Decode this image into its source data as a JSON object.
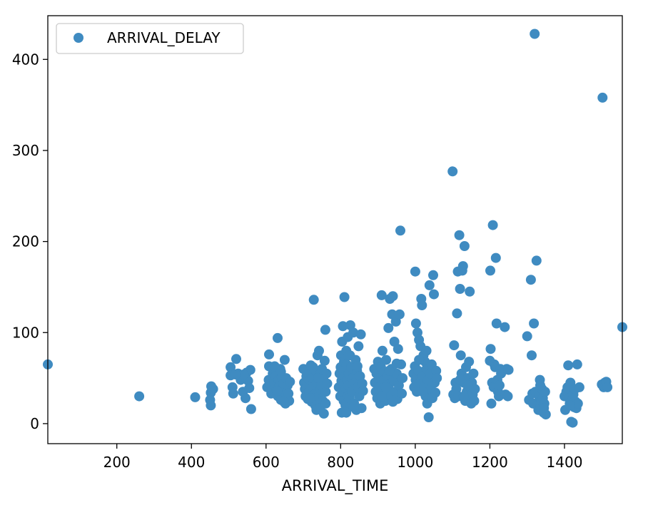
{
  "chart_data": {
    "type": "scatter",
    "title": "",
    "xlabel": "ARRIVAL_TIME",
    "ylabel": "",
    "xlim": [
      15,
      1555
    ],
    "ylim": [
      -22,
      448
    ],
    "x_ticks": [
      200,
      400,
      600,
      800,
      1000,
      1200,
      1400
    ],
    "y_ticks": [
      0,
      100,
      200,
      300,
      400
    ],
    "grid": false,
    "legend": {
      "placement": "top-left",
      "entries": [
        "ARRIVAL_DELAY"
      ]
    },
    "color": "#3f8bc1",
    "series": [
      {
        "name": "ARRIVAL_DELAY",
        "points": [
          [
            15,
            65
          ],
          [
            260,
            30
          ],
          [
            410,
            29
          ],
          [
            453,
            41
          ],
          [
            452,
            34
          ],
          [
            450,
            26
          ],
          [
            452,
            20
          ],
          [
            458,
            38
          ],
          [
            505,
            62
          ],
          [
            505,
            53
          ],
          [
            510,
            40
          ],
          [
            512,
            33
          ],
          [
            520,
            71
          ],
          [
            525,
            55
          ],
          [
            532,
            48
          ],
          [
            538,
            35
          ],
          [
            545,
            28
          ],
          [
            548,
            56
          ],
          [
            552,
            47
          ],
          [
            555,
            39
          ],
          [
            558,
            59
          ],
          [
            560,
            16
          ],
          [
            540,
            54
          ],
          [
            518,
            54
          ],
          [
            608,
            76
          ],
          [
            608,
            63
          ],
          [
            603,
            40
          ],
          [
            607,
            48
          ],
          [
            612,
            43
          ],
          [
            614,
            33
          ],
          [
            618,
            55
          ],
          [
            622,
            45
          ],
          [
            625,
            52
          ],
          [
            628,
            37
          ],
          [
            631,
            94
          ],
          [
            632,
            30
          ],
          [
            634,
            48
          ],
          [
            636,
            41
          ],
          [
            638,
            60
          ],
          [
            640,
            26
          ],
          [
            642,
            51
          ],
          [
            644,
            38
          ],
          [
            646,
            44
          ],
          [
            648,
            35
          ],
          [
            650,
            70
          ],
          [
            652,
            22
          ],
          [
            654,
            50
          ],
          [
            656,
            28
          ],
          [
            658,
            42
          ],
          [
            660,
            33
          ],
          [
            662,
            25
          ],
          [
            664,
            46
          ],
          [
            623,
            63
          ],
          [
            640,
            57
          ],
          [
            630,
            36
          ],
          [
            648,
            24
          ],
          [
            700,
            60
          ],
          [
            702,
            45
          ],
          [
            704,
            38
          ],
          [
            706,
            30
          ],
          [
            708,
            52
          ],
          [
            710,
            42
          ],
          [
            712,
            27
          ],
          [
            714,
            55
          ],
          [
            716,
            35
          ],
          [
            718,
            48
          ],
          [
            720,
            64
          ],
          [
            722,
            24
          ],
          [
            724,
            50
          ],
          [
            726,
            40
          ],
          [
            728,
            136
          ],
          [
            730,
            32
          ],
          [
            732,
            20
          ],
          [
            734,
            58
          ],
          [
            736,
            45
          ],
          [
            738,
            75
          ],
          [
            740,
            30
          ],
          [
            742,
            80
          ],
          [
            744,
            52
          ],
          [
            746,
            37
          ],
          [
            748,
            42
          ],
          [
            750,
            60
          ],
          [
            752,
            25
          ],
          [
            754,
            48
          ],
          [
            755,
            11
          ],
          [
            757,
            69
          ],
          [
            759,
            103
          ],
          [
            760,
            35
          ],
          [
            762,
            55
          ],
          [
            764,
            44
          ],
          [
            735,
            15
          ],
          [
            745,
            17
          ],
          [
            718,
            28
          ],
          [
            726,
            62
          ],
          [
            740,
            50
          ],
          [
            760,
            22
          ],
          [
            795,
            40
          ],
          [
            797,
            55
          ],
          [
            799,
            30
          ],
          [
            800,
            62
          ],
          [
            801,
            75
          ],
          [
            802,
            47
          ],
          [
            803,
            12
          ],
          [
            804,
            90
          ],
          [
            805,
            35
          ],
          [
            806,
            107
          ],
          [
            807,
            58
          ],
          [
            808,
            25
          ],
          [
            809,
            68
          ],
          [
            810,
            139
          ],
          [
            811,
            45
          ],
          [
            812,
            52
          ],
          [
            813,
            20
          ],
          [
            814,
            38
          ],
          [
            815,
            80
          ],
          [
            816,
            65
          ],
          [
            817,
            48
          ],
          [
            818,
            30
          ],
          [
            819,
            95
          ],
          [
            820,
            42
          ],
          [
            822,
            55
          ],
          [
            824,
            28
          ],
          [
            826,
            108
          ],
          [
            828,
            62
          ],
          [
            830,
            35
          ],
          [
            832,
            50
          ],
          [
            834,
            100
          ],
          [
            836,
            22
          ],
          [
            838,
            45
          ],
          [
            840,
            70
          ],
          [
            842,
            15
          ],
          [
            844,
            58
          ],
          [
            846,
            40
          ],
          [
            848,
            85
          ],
          [
            850,
            30
          ],
          [
            852,
            52
          ],
          [
            854,
            98
          ],
          [
            856,
            17
          ],
          [
            858,
            44
          ],
          [
            860,
            36
          ],
          [
            825,
            75
          ],
          [
            835,
            18
          ],
          [
            845,
            63
          ],
          [
            815,
            12
          ],
          [
            890,
            60
          ],
          [
            892,
            45
          ],
          [
            894,
            35
          ],
          [
            896,
            55
          ],
          [
            898,
            28
          ],
          [
            900,
            68
          ],
          [
            902,
            50
          ],
          [
            904,
            40
          ],
          [
            906,
            22
          ],
          [
            908,
            62
          ],
          [
            910,
            141
          ],
          [
            912,
            80
          ],
          [
            914,
            32
          ],
          [
            916,
            48
          ],
          [
            918,
            57
          ],
          [
            920,
            25
          ],
          [
            922,
            70
          ],
          [
            924,
            38
          ],
          [
            926,
            52
          ],
          [
            928,
            105
          ],
          [
            930,
            43
          ],
          [
            932,
            137
          ],
          [
            934,
            30
          ],
          [
            936,
            60
          ],
          [
            938,
            120
          ],
          [
            940,
            140
          ],
          [
            942,
            47
          ],
          [
            944,
            90
          ],
          [
            946,
            35
          ],
          [
            948,
            112
          ],
          [
            950,
            55
          ],
          [
            952,
            27
          ],
          [
            954,
            82
          ],
          [
            956,
            42
          ],
          [
            958,
            120
          ],
          [
            960,
            212
          ],
          [
            962,
            65
          ],
          [
            964,
            33
          ],
          [
            966,
            50
          ],
          [
            920,
            40
          ],
          [
            930,
            58
          ],
          [
            940,
            24
          ],
          [
            950,
            66
          ],
          [
            910,
            30
          ],
          [
            995,
            55
          ],
          [
            997,
            40
          ],
          [
            999,
            63
          ],
          [
            1000,
            167
          ],
          [
            1001,
            48
          ],
          [
            1002,
            110
          ],
          [
            1004,
            35
          ],
          [
            1006,
            100
          ],
          [
            1008,
            58
          ],
          [
            1010,
            92
          ],
          [
            1012,
            45
          ],
          [
            1014,
            85
          ],
          [
            1016,
            137
          ],
          [
            1018,
            130
          ],
          [
            1020,
            52
          ],
          [
            1022,
            75
          ],
          [
            1024,
            40
          ],
          [
            1026,
            68
          ],
          [
            1028,
            30
          ],
          [
            1030,
            60
          ],
          [
            1032,
            22
          ],
          [
            1034,
            48
          ],
          [
            1036,
            7
          ],
          [
            1038,
            152
          ],
          [
            1040,
            55
          ],
          [
            1042,
            38
          ],
          [
            1044,
            65
          ],
          [
            1046,
            28
          ],
          [
            1048,
            163
          ],
          [
            1050,
            142
          ],
          [
            1052,
            45
          ],
          [
            1054,
            34
          ],
          [
            1056,
            58
          ],
          [
            1058,
            50
          ],
          [
            1010,
            70
          ],
          [
            1020,
            35
          ],
          [
            1030,
            80
          ],
          [
            1100,
            277
          ],
          [
            1102,
            32
          ],
          [
            1104,
            86
          ],
          [
            1106,
            28
          ],
          [
            1108,
            45
          ],
          [
            1110,
            38
          ],
          [
            1112,
            121
          ],
          [
            1114,
            167
          ],
          [
            1116,
            30
          ],
          [
            1118,
            207
          ],
          [
            1120,
            148
          ],
          [
            1122,
            75
          ],
          [
            1124,
            55
          ],
          [
            1126,
            168
          ],
          [
            1128,
            173
          ],
          [
            1130,
            45
          ],
          [
            1132,
            195
          ],
          [
            1134,
            25
          ],
          [
            1136,
            62
          ],
          [
            1138,
            35
          ],
          [
            1140,
            50
          ],
          [
            1142,
            28
          ],
          [
            1144,
            68
          ],
          [
            1146,
            145
          ],
          [
            1148,
            40
          ],
          [
            1150,
            22
          ],
          [
            1152,
            45
          ],
          [
            1154,
            32
          ],
          [
            1156,
            55
          ],
          [
            1158,
            25
          ],
          [
            1160,
            38
          ],
          [
            1130,
            30
          ],
          [
            1140,
            42
          ],
          [
            1120,
            48
          ],
          [
            1200,
            69
          ],
          [
            1201,
            168
          ],
          [
            1202,
            82
          ],
          [
            1204,
            22
          ],
          [
            1206,
            45
          ],
          [
            1208,
            218
          ],
          [
            1210,
            40
          ],
          [
            1212,
            65
          ],
          [
            1214,
            62
          ],
          [
            1216,
            182
          ],
          [
            1218,
            110
          ],
          [
            1220,
            48
          ],
          [
            1222,
            35
          ],
          [
            1224,
            30
          ],
          [
            1226,
            42
          ],
          [
            1228,
            60
          ],
          [
            1230,
            55
          ],
          [
            1240,
            106
          ],
          [
            1242,
            32
          ],
          [
            1245,
            60
          ],
          [
            1248,
            30
          ],
          [
            1250,
            59
          ],
          [
            1300,
            96
          ],
          [
            1305,
            26
          ],
          [
            1310,
            158
          ],
          [
            1312,
            75
          ],
          [
            1314,
            33
          ],
          [
            1316,
            22
          ],
          [
            1318,
            110
          ],
          [
            1320,
            428
          ],
          [
            1322,
            35
          ],
          [
            1325,
            179
          ],
          [
            1327,
            20
          ],
          [
            1330,
            15
          ],
          [
            1332,
            30
          ],
          [
            1334,
            48
          ],
          [
            1336,
            18
          ],
          [
            1338,
            25
          ],
          [
            1340,
            38
          ],
          [
            1342,
            28
          ],
          [
            1344,
            12
          ],
          [
            1346,
            22
          ],
          [
            1348,
            35
          ],
          [
            1350,
            10
          ],
          [
            1345,
            17
          ],
          [
            1335,
            42
          ],
          [
            1400,
            30
          ],
          [
            1402,
            15
          ],
          [
            1405,
            35
          ],
          [
            1408,
            40
          ],
          [
            1410,
            64
          ],
          [
            1412,
            28
          ],
          [
            1414,
            22
          ],
          [
            1416,
            45
          ],
          [
            1418,
            2
          ],
          [
            1420,
            25
          ],
          [
            1422,
            1
          ],
          [
            1424,
            32
          ],
          [
            1426,
            18
          ],
          [
            1428,
            38
          ],
          [
            1430,
            24
          ],
          [
            1432,
            17
          ],
          [
            1434,
            65
          ],
          [
            1436,
            22
          ],
          [
            1440,
            40
          ],
          [
            1415,
            20
          ],
          [
            1500,
            43
          ],
          [
            1502,
            358
          ],
          [
            1505,
            40
          ],
          [
            1508,
            45
          ],
          [
            1512,
            46
          ],
          [
            1515,
            40
          ],
          [
            1555,
            106
          ]
        ]
      }
    ]
  }
}
